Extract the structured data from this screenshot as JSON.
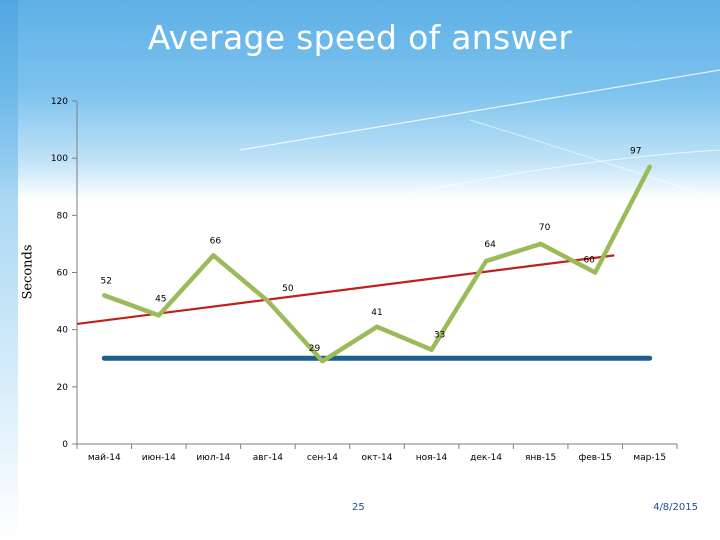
{
  "slide": {
    "title": "Average speed of answer",
    "page_number": "25",
    "date": "4/8/2015"
  },
  "colors": {
    "actual_line": "#9bbb59",
    "trend_line": "#c0201a",
    "target_line": "#1f5f8f",
    "axis": "#7f7f7f",
    "title_band": "#6cb8ea"
  },
  "chart_data": {
    "type": "line",
    "ylabel": "Seconds",
    "xlabel": "",
    "ylim": [
      0,
      120
    ],
    "yticks": [
      "0",
      "20",
      "40",
      "60",
      "80",
      "100",
      "120"
    ],
    "ytick_values": [
      0,
      20,
      40,
      60,
      80,
      100,
      120
    ],
    "categories": [
      "май-14",
      "июн-14",
      "июл-14",
      "авг-14",
      "сен-14",
      "окт-14",
      "ноя-14",
      "дек-14",
      "янв-15",
      "фев-15",
      "мар-15"
    ],
    "series": [
      {
        "kind": "actual",
        "values": [
          52,
          45,
          66,
          50,
          29,
          41,
          33,
          64,
          70,
          60,
          97
        ],
        "labels": [
          "52",
          "45",
          "66",
          "50",
          "29",
          "41",
          "33",
          "64",
          "70",
          "60",
          "97"
        ]
      },
      {
        "kind": "target",
        "values": [
          30,
          30,
          30,
          30,
          30,
          30,
          30,
          30,
          30,
          30,
          30
        ]
      }
    ],
    "trendline": {
      "kind": "linear",
      "start": 42,
      "end": 66
    },
    "grid": false,
    "legend": "none"
  }
}
